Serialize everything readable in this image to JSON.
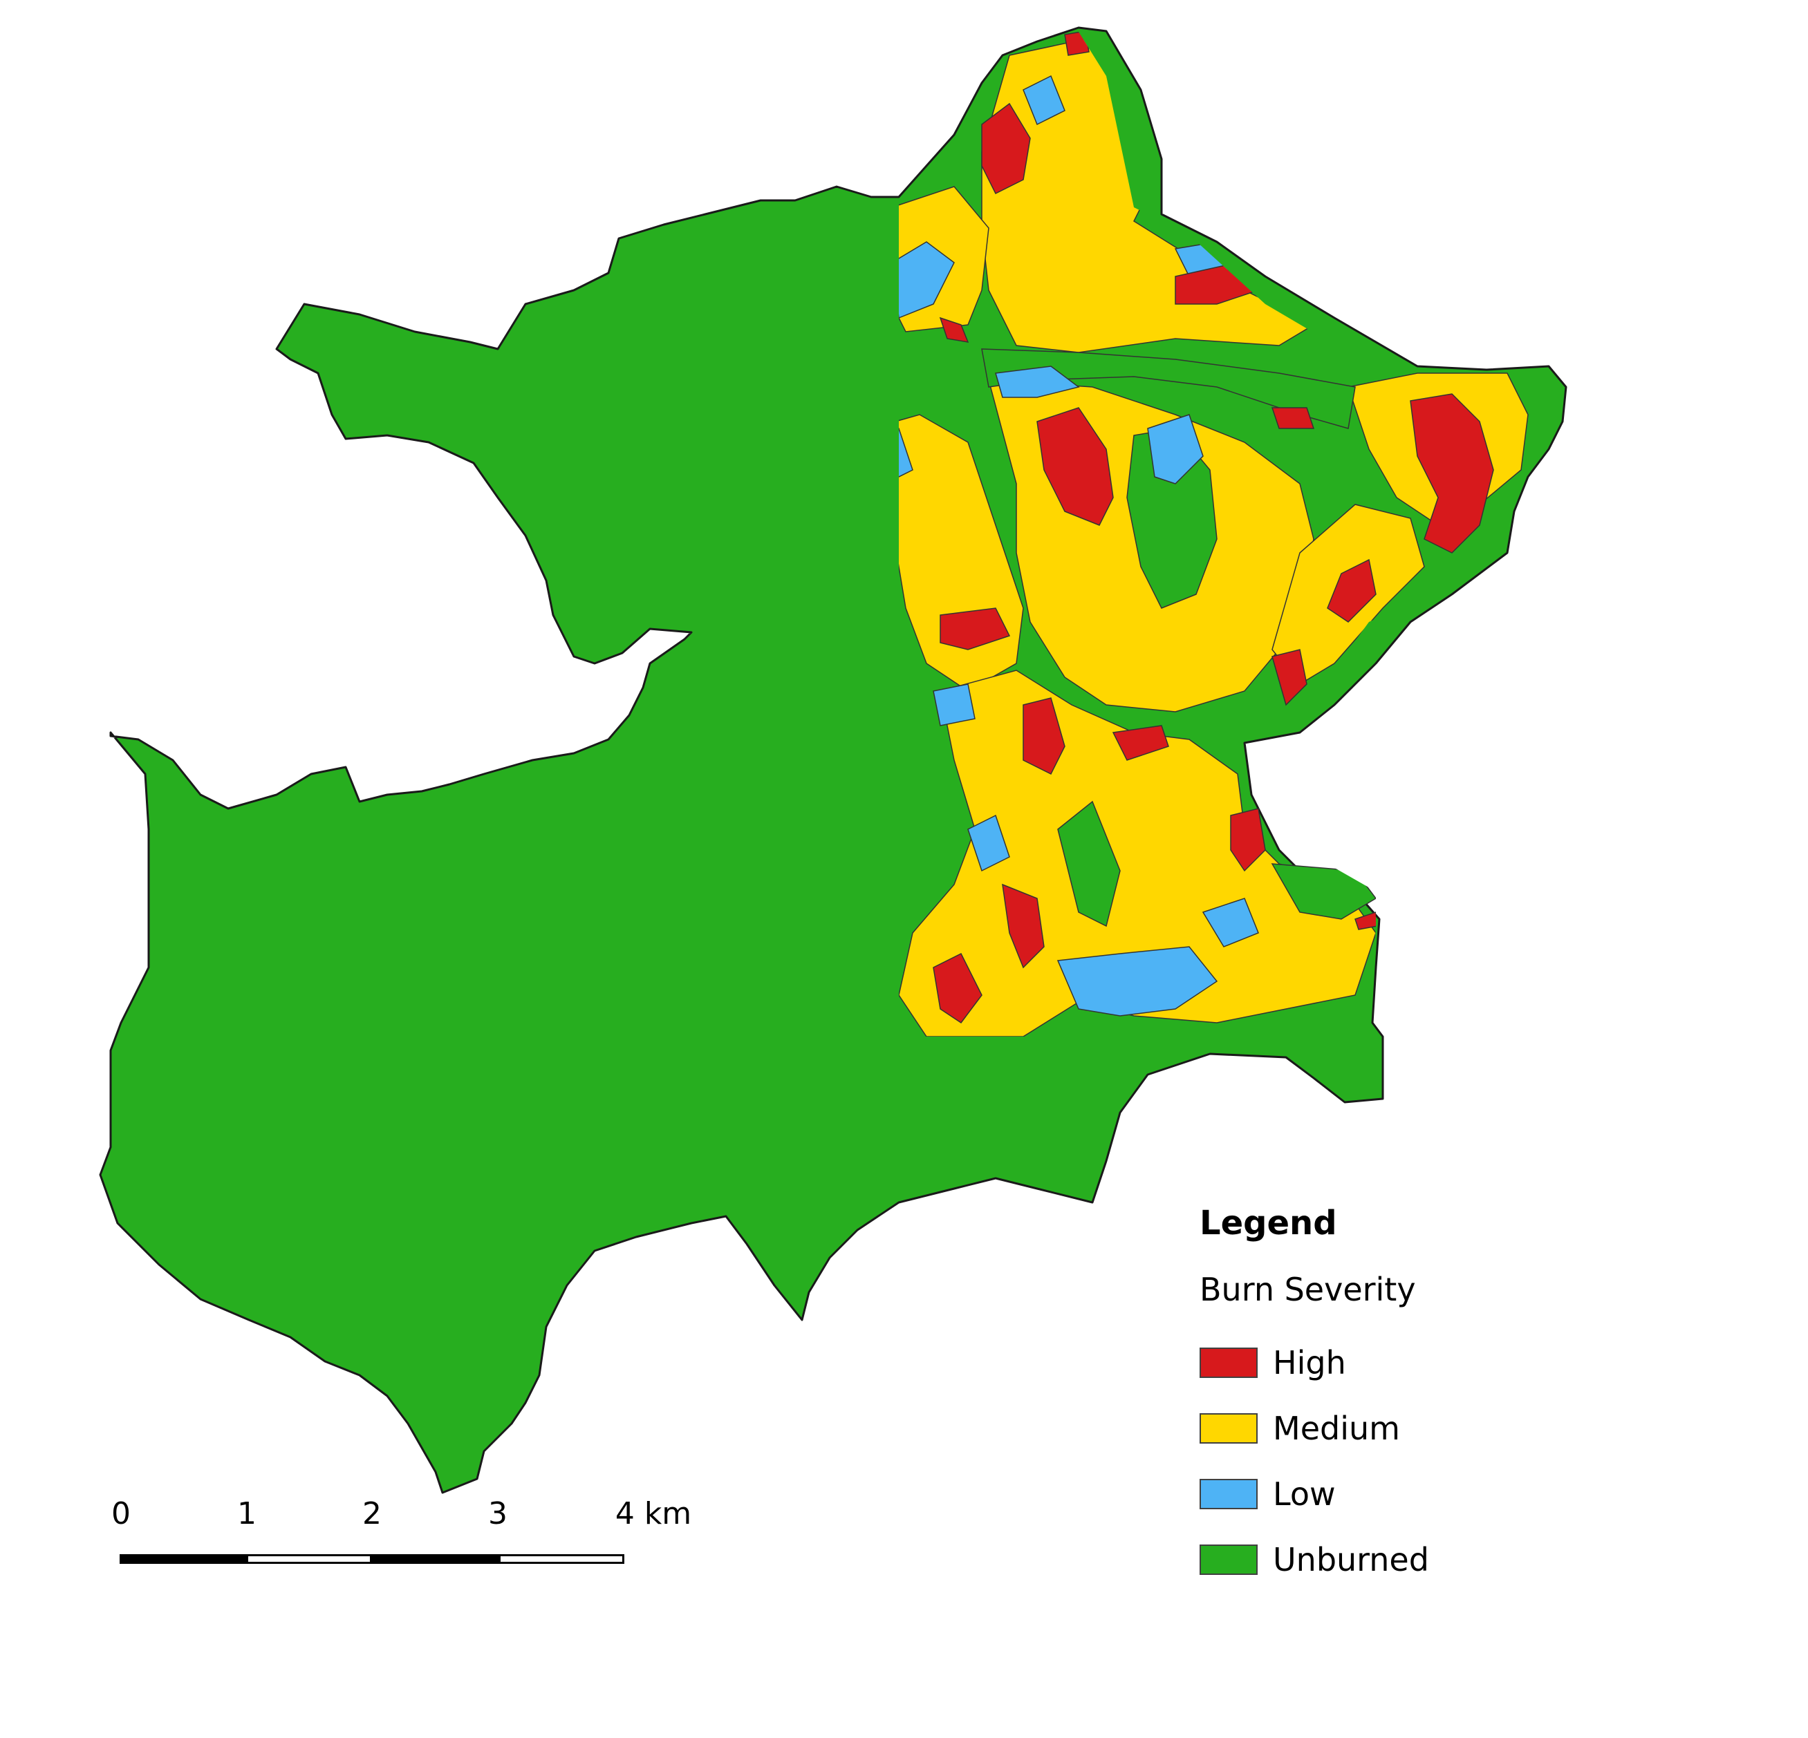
{
  "legend": {
    "title": "Legend",
    "subtitle": "Burn Severity",
    "items": [
      {
        "label": "High",
        "color": "#d7191c"
      },
      {
        "label": "Medium",
        "color": "#ffd700"
      },
      {
        "label": "Low",
        "color": "#4eb3f5"
      },
      {
        "label": "Unburned",
        "color": "#27ae1f"
      }
    ]
  },
  "scale_bar": {
    "ticks": [
      "0",
      "1",
      "2",
      "3",
      "4 km"
    ]
  }
}
